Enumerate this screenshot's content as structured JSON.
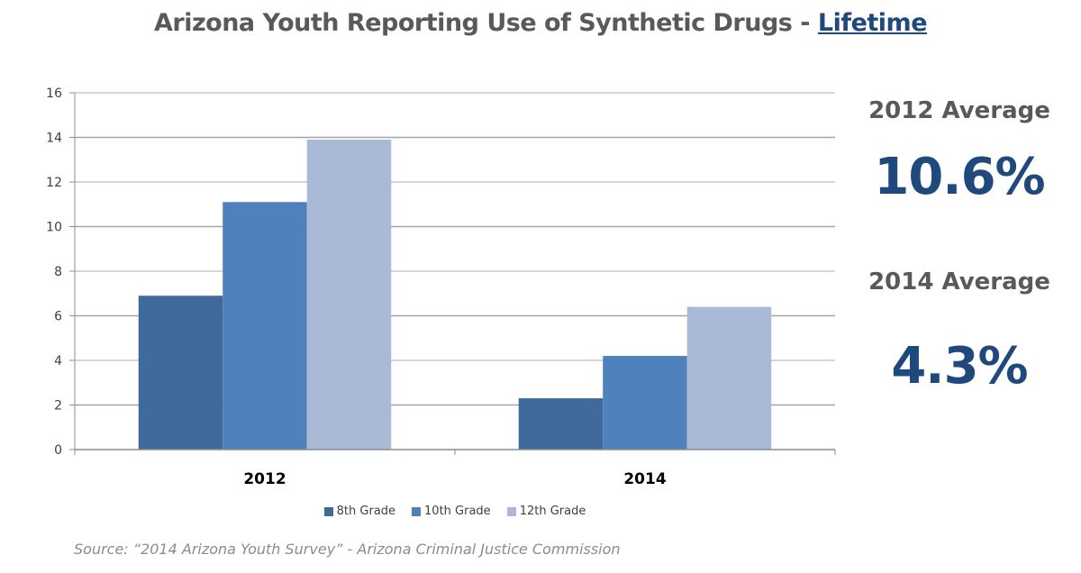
{
  "header": {
    "title_main": "Arizona Youth Reporting Use of Synthetic Drugs - ",
    "title_emphasis": "Lifetime"
  },
  "averages": [
    {
      "label": "2012  Average",
      "value": "10.6%"
    },
    {
      "label": "2014  Average",
      "value": "4.3%"
    }
  ],
  "source": "Source: “2014 Arizona Youth Survey” - Arizona Criminal Justice Commission",
  "colors": {
    "grade8": "#406a9c",
    "grade10": "#4f81bd",
    "grade12": "#aab9d6",
    "accent": "#1f497d"
  },
  "chart_data": {
    "type": "bar",
    "title": "Arizona Youth Reporting Use of Synthetic Drugs - Lifetime",
    "xlabel": "",
    "ylabel": "",
    "categories": [
      "2012",
      "2014"
    ],
    "series": [
      {
        "name": "8th Grade",
        "values": [
          6.9,
          2.3
        ]
      },
      {
        "name": "10th Grade",
        "values": [
          11.1,
          4.2
        ]
      },
      {
        "name": "12th Grade",
        "values": [
          13.9,
          6.4
        ]
      }
    ],
    "ylim": [
      0,
      16
    ],
    "yticks": [
      "0",
      "2",
      "4",
      "6",
      "8",
      "10",
      "12",
      "14",
      "16"
    ],
    "grid": true,
    "legend_position": "bottom"
  }
}
